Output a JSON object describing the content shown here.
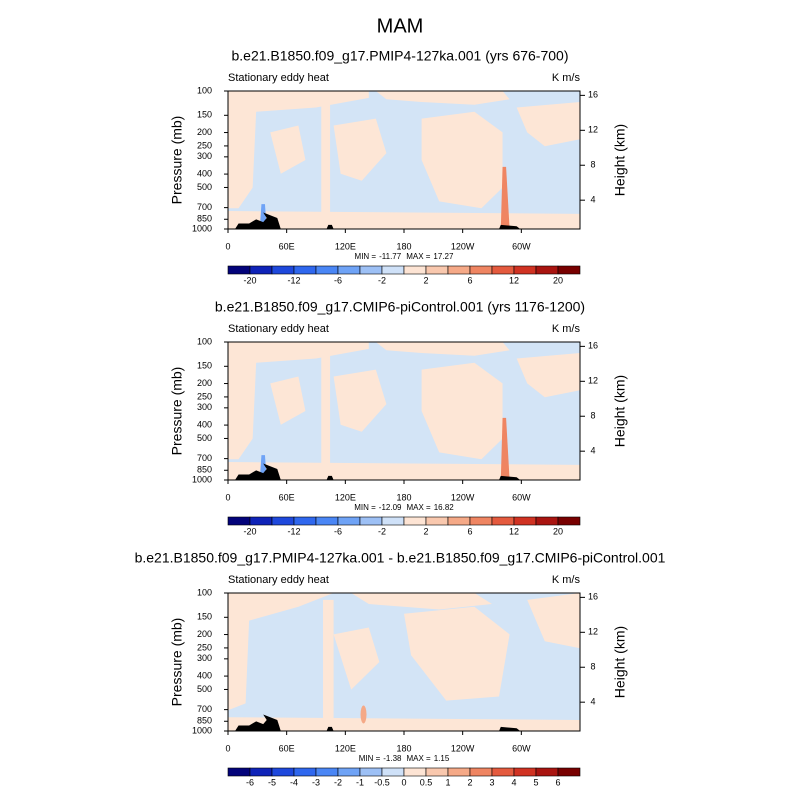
{
  "title": "MAM",
  "chart_data": [
    {
      "type": "contour",
      "title": "b.e21.B1850.f09_g17.PMIP4-127ka.001 (yrs 676-700)",
      "left_label": "Stationary eddy heat",
      "right_label": "K m/s",
      "ylabel": "Pressure (mb)",
      "y2label": "Height (km)",
      "ylog": true,
      "ylim": [
        1000,
        100
      ],
      "yticks": [
        100,
        150,
        200,
        250,
        300,
        400,
        500,
        700,
        850,
        1000
      ],
      "y2lim": [
        0.7,
        16.5
      ],
      "y2ticks": [
        4,
        8,
        12,
        16
      ],
      "xlim": [
        0,
        360
      ],
      "xticks": [
        0,
        {
          "value": 60,
          "label": "60E"
        },
        {
          "value": 120,
          "label": "120E"
        },
        180,
        {
          "value": 240,
          "label": "120W"
        },
        {
          "value": 300,
          "label": "60W"
        }
      ],
      "min_label": "MIN =",
      "min": -11.77,
      "max_label": "MAX =",
      "max": 17.27,
      "colorbar": {
        "colors": [
          "#03037a",
          "#0f23b8",
          "#1e48dc",
          "#2f67ee",
          "#4a86f5",
          "#6fa3f6",
          "#9dc0f5",
          "#cfe1f8",
          "#fde4d4",
          "#f9c8ae",
          "#f5a987",
          "#ef8562",
          "#e45a3e",
          "#d03222",
          "#a91410",
          "#780000"
        ],
        "ticks": [
          -20,
          -12,
          -6,
          -2,
          2,
          6,
          12,
          20
        ]
      }
    },
    {
      "type": "contour",
      "title": "b.e21.B1850.f09_g17.CMIP6-piControl.001 (yrs 1176-1200)",
      "left_label": "Stationary eddy heat",
      "right_label": "K m/s",
      "ylabel": "Pressure (mb)",
      "y2label": "Height (km)",
      "ylog": true,
      "ylim": [
        1000,
        100
      ],
      "yticks": [
        100,
        150,
        200,
        250,
        300,
        400,
        500,
        700,
        850,
        1000
      ],
      "y2lim": [
        0.7,
        16.5
      ],
      "y2ticks": [
        4,
        8,
        12,
        16
      ],
      "xlim": [
        0,
        360
      ],
      "xticks": [
        0,
        {
          "value": 60,
          "label": "60E"
        },
        {
          "value": 120,
          "label": "120E"
        },
        180,
        {
          "value": 240,
          "label": "120W"
        },
        {
          "value": 300,
          "label": "60W"
        }
      ],
      "min_label": "MIN =",
      "min": -12.09,
      "max_label": "MAX =",
      "max": 16.82,
      "colorbar": {
        "colors": [
          "#03037a",
          "#0f23b8",
          "#1e48dc",
          "#2f67ee",
          "#4a86f5",
          "#6fa3f6",
          "#9dc0f5",
          "#cfe1f8",
          "#fde4d4",
          "#f9c8ae",
          "#f5a987",
          "#ef8562",
          "#e45a3e",
          "#d03222",
          "#a91410",
          "#780000"
        ],
        "ticks": [
          -20,
          -12,
          -6,
          -2,
          2,
          6,
          12,
          20
        ]
      }
    },
    {
      "type": "contour",
      "title": "b.e21.B1850.f09_g17.PMIP4-127ka.001 - b.e21.B1850.f09_g17.CMIP6-piControl.001",
      "left_label": "Stationary eddy heat",
      "right_label": "K m/s",
      "ylabel": "Pressure (mb)",
      "y2label": "Height (km)",
      "ylog": true,
      "ylim": [
        1000,
        100
      ],
      "yticks": [
        100,
        150,
        200,
        250,
        300,
        400,
        500,
        700,
        850,
        1000
      ],
      "y2lim": [
        0.7,
        16.5
      ],
      "y2ticks": [
        4,
        8,
        12,
        16
      ],
      "xlim": [
        0,
        360
      ],
      "xticks": [
        0,
        {
          "value": 60,
          "label": "60E"
        },
        {
          "value": 120,
          "label": "120E"
        },
        180,
        {
          "value": 240,
          "label": "120W"
        },
        {
          "value": 300,
          "label": "60W"
        }
      ],
      "min_label": "MIN =",
      "min": -1.38,
      "max_label": "MAX =",
      "max": 1.15,
      "colorbar": {
        "colors": [
          "#03037a",
          "#0f23b8",
          "#1e48dc",
          "#2f67ee",
          "#4a86f5",
          "#6fa3f6",
          "#9dc0f5",
          "#cfe1f8",
          "#fde4d4",
          "#f9c8ae",
          "#f5a987",
          "#ef8562",
          "#e45a3e",
          "#d03222",
          "#a91410",
          "#780000"
        ],
        "ticks": [
          -6,
          -5,
          -4,
          -3,
          -2,
          -1,
          -0.5,
          0,
          0.5,
          1,
          2,
          3,
          4,
          5,
          6
        ]
      }
    }
  ]
}
